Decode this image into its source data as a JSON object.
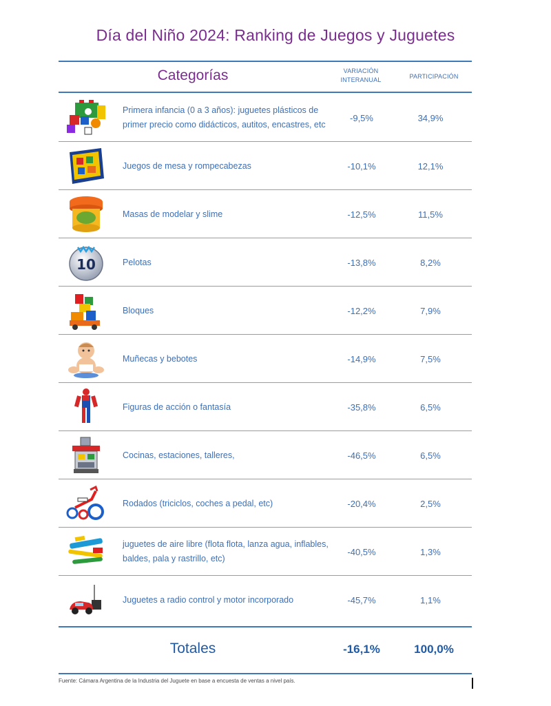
{
  "title": "Día del Niño 2024: Ranking de Juegos y Juguetes",
  "header": {
    "categories": "Categorías",
    "variation": "VARIACIÓN INTERANUAL",
    "participation": "PARTICIPACIÓN"
  },
  "rows": [
    {
      "label": "Primera infancia (0 a 3 años): juguetes plásticos de primer precio como didácticos, autitos, encastres, etc",
      "variation": "-9,5%",
      "participation": "34,9%",
      "icon": "baby-toy-icon"
    },
    {
      "label": "Juegos de mesa y rompecabezas",
      "variation": "-10,1%",
      "participation": "12,1%",
      "icon": "board-game-icon"
    },
    {
      "label": "Masas de modelar y slime",
      "variation": "-12,5%",
      "participation": "11,5%",
      "icon": "dough-tub-icon"
    },
    {
      "label": "Pelotas",
      "variation": "-13,8%",
      "participation": "8,2%",
      "icon": "ball-icon",
      "ball_number": "10"
    },
    {
      "label": "Bloques",
      "variation": "-12,2%",
      "participation": "7,9%",
      "icon": "blocks-icon"
    },
    {
      "label": "Muñecas y bebotes",
      "variation": "-14,9%",
      "participation": "7,5%",
      "icon": "doll-icon"
    },
    {
      "label": "Figuras de acción o fantasía",
      "variation": "-35,8%",
      "participation": "6,5%",
      "icon": "action-figure-icon"
    },
    {
      "label": "Cocinas, estaciones, talleres,",
      "variation": "-46,5%",
      "participation": "6,5%",
      "icon": "toy-kitchen-icon"
    },
    {
      "label": "Rodados (triciclos, coches a pedal, etc)",
      "variation": "-20,4%",
      "participation": "2,5%",
      "icon": "tricycle-icon"
    },
    {
      "label": "juguetes de aire libre (flota flota, lanza agua, inflables, baldes, pala y rastrillo, etc)",
      "variation": "-40,5%",
      "participation": "1,3%",
      "icon": "outdoor-toys-icon"
    },
    {
      "label": "Juguetes a radio control y motor incorporado",
      "variation": "-45,7%",
      "participation": "1,1%",
      "icon": "rc-car-icon"
    }
  ],
  "totals": {
    "label": "Totales",
    "variation": "-16,1%",
    "participation": "100,0%"
  },
  "source": "Fuente: Cámara Argentina de la Industria del Juguete en base a encuesta de ventas a nivel país.",
  "colors": {
    "title": "#7a2d8f",
    "text": "#3d6fb6",
    "rule": "#3f78b6"
  }
}
